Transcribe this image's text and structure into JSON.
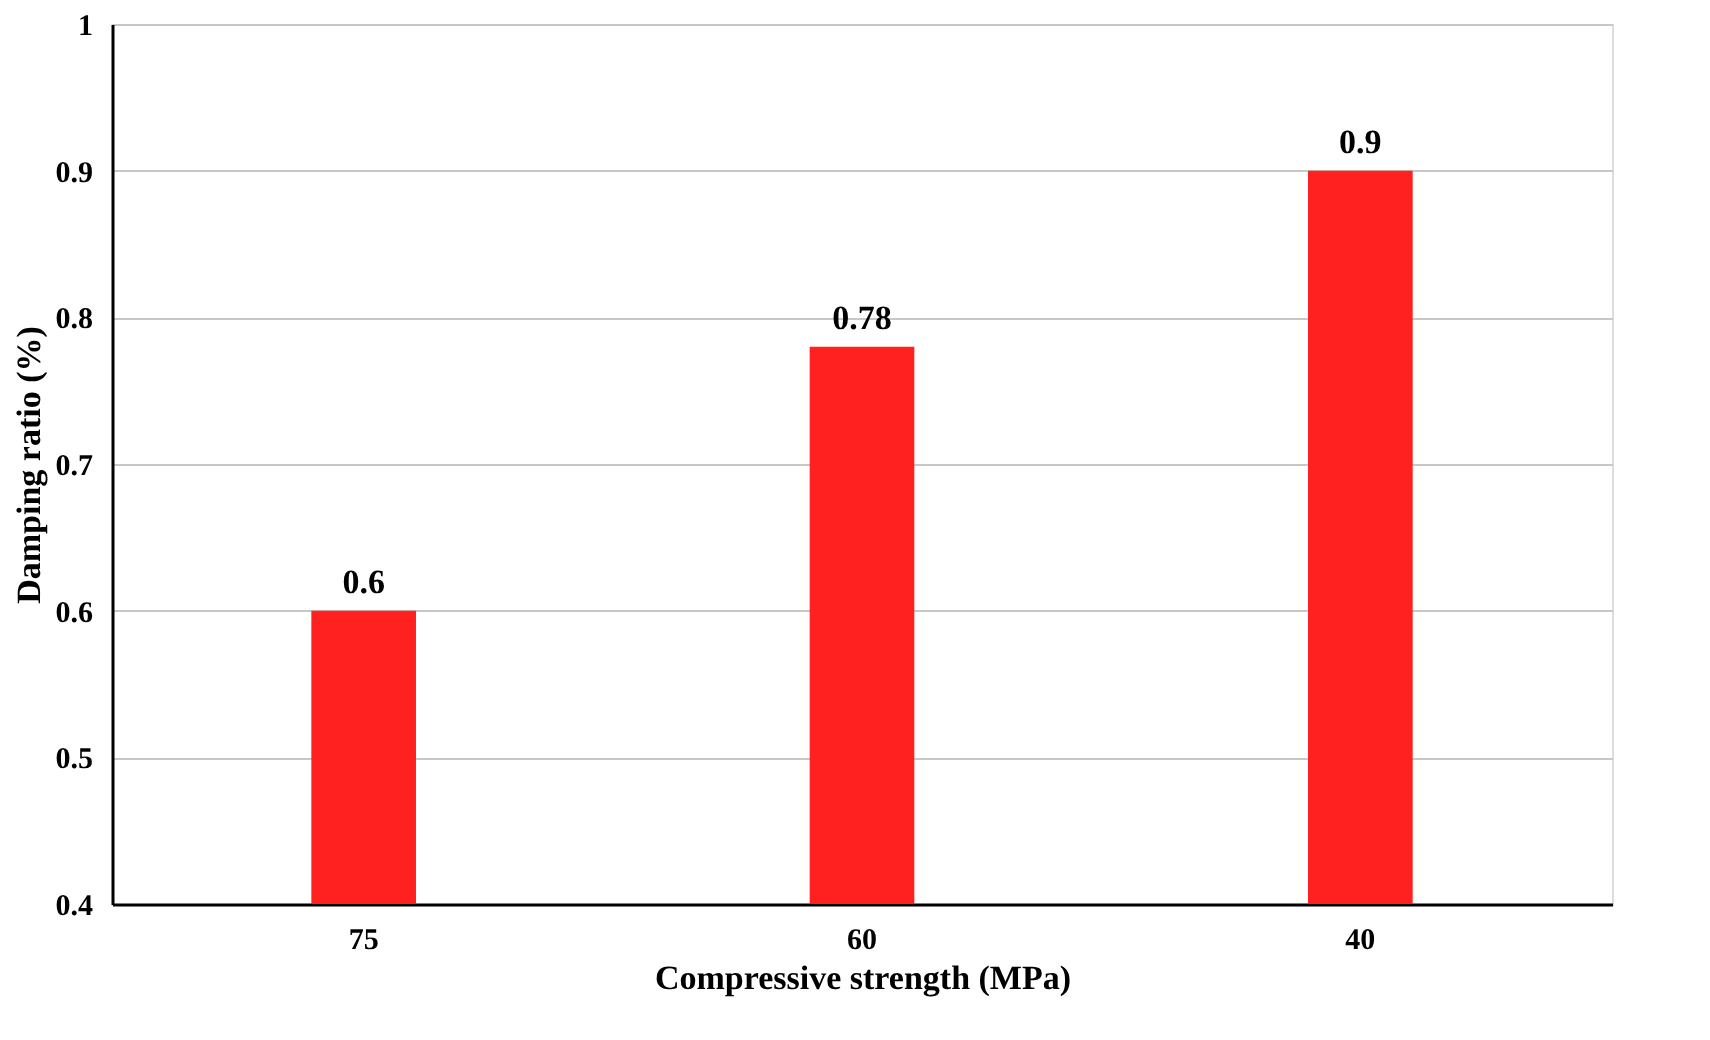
{
  "chart_data": {
    "type": "bar",
    "xlabel": "Compressive strength (MPa)",
    "ylabel": "Damping ratio (%)",
    "categories": [
      "75",
      "60",
      "40"
    ],
    "series": [
      {
        "color": "#ff2020",
        "values": [
          0.6,
          0.78,
          0.9
        ]
      }
    ],
    "ylim": [
      0.4,
      1
    ],
    "yticks": [
      0.4,
      0.5,
      0.6,
      0.7,
      0.8,
      0.9,
      1
    ],
    "grid": "y",
    "data_labels": true
  }
}
